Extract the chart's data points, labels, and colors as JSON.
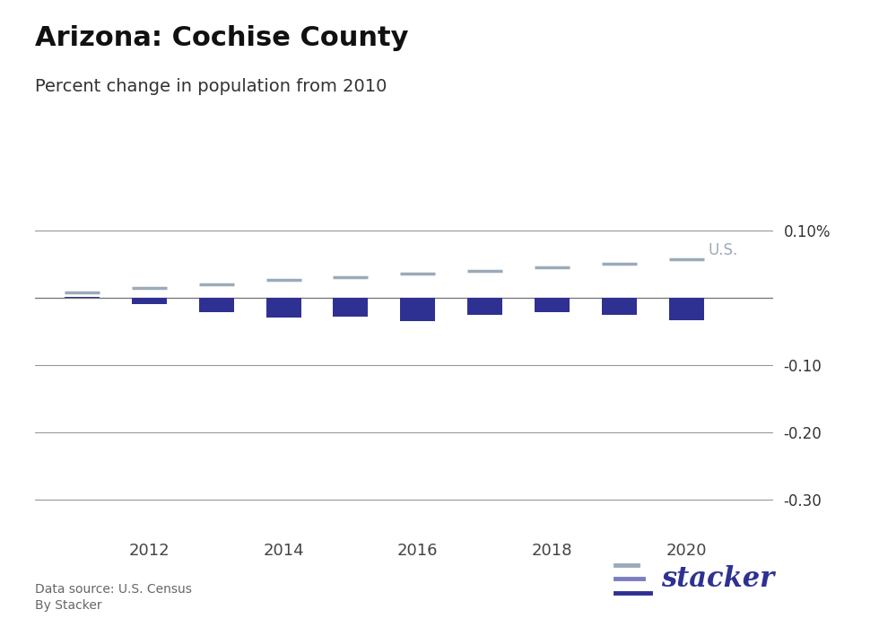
{
  "title": "Arizona: Cochise County",
  "subtitle": "Percent change in population from 2010",
  "bar_years": [
    2011,
    2012,
    2013,
    2014,
    2015,
    2016,
    2017,
    2018,
    2019,
    2020
  ],
  "county_values": [
    0.001,
    -0.01,
    -0.022,
    -0.03,
    -0.028,
    -0.035,
    -0.025,
    -0.022,
    -0.025,
    -0.033
  ],
  "us_values": [
    0.008,
    0.014,
    0.02,
    0.026,
    0.031,
    0.036,
    0.04,
    0.045,
    0.05,
    0.057
  ],
  "bar_color": "#2e3192",
  "us_color": "#9baab8",
  "us_label": "U.S.",
  "ylim": [
    -0.35,
    0.135
  ],
  "yticks": [
    0.1,
    0.0,
    -0.1,
    -0.2,
    -0.3
  ],
  "ytick_labels": [
    "0.10%",
    "",
    "-0.10",
    "-0.20",
    "-0.30"
  ],
  "grid_color": "#999999",
  "bg_color": "#ffffff",
  "source_text": "Data source: U.S. Census",
  "by_text": "By Stacker",
  "stacker_text_color": "#2e3192",
  "title_fontsize": 22,
  "subtitle_fontsize": 14,
  "axis_fontsize": 12,
  "xtick_positions": [
    2012,
    2014,
    2016,
    2018,
    2020
  ]
}
